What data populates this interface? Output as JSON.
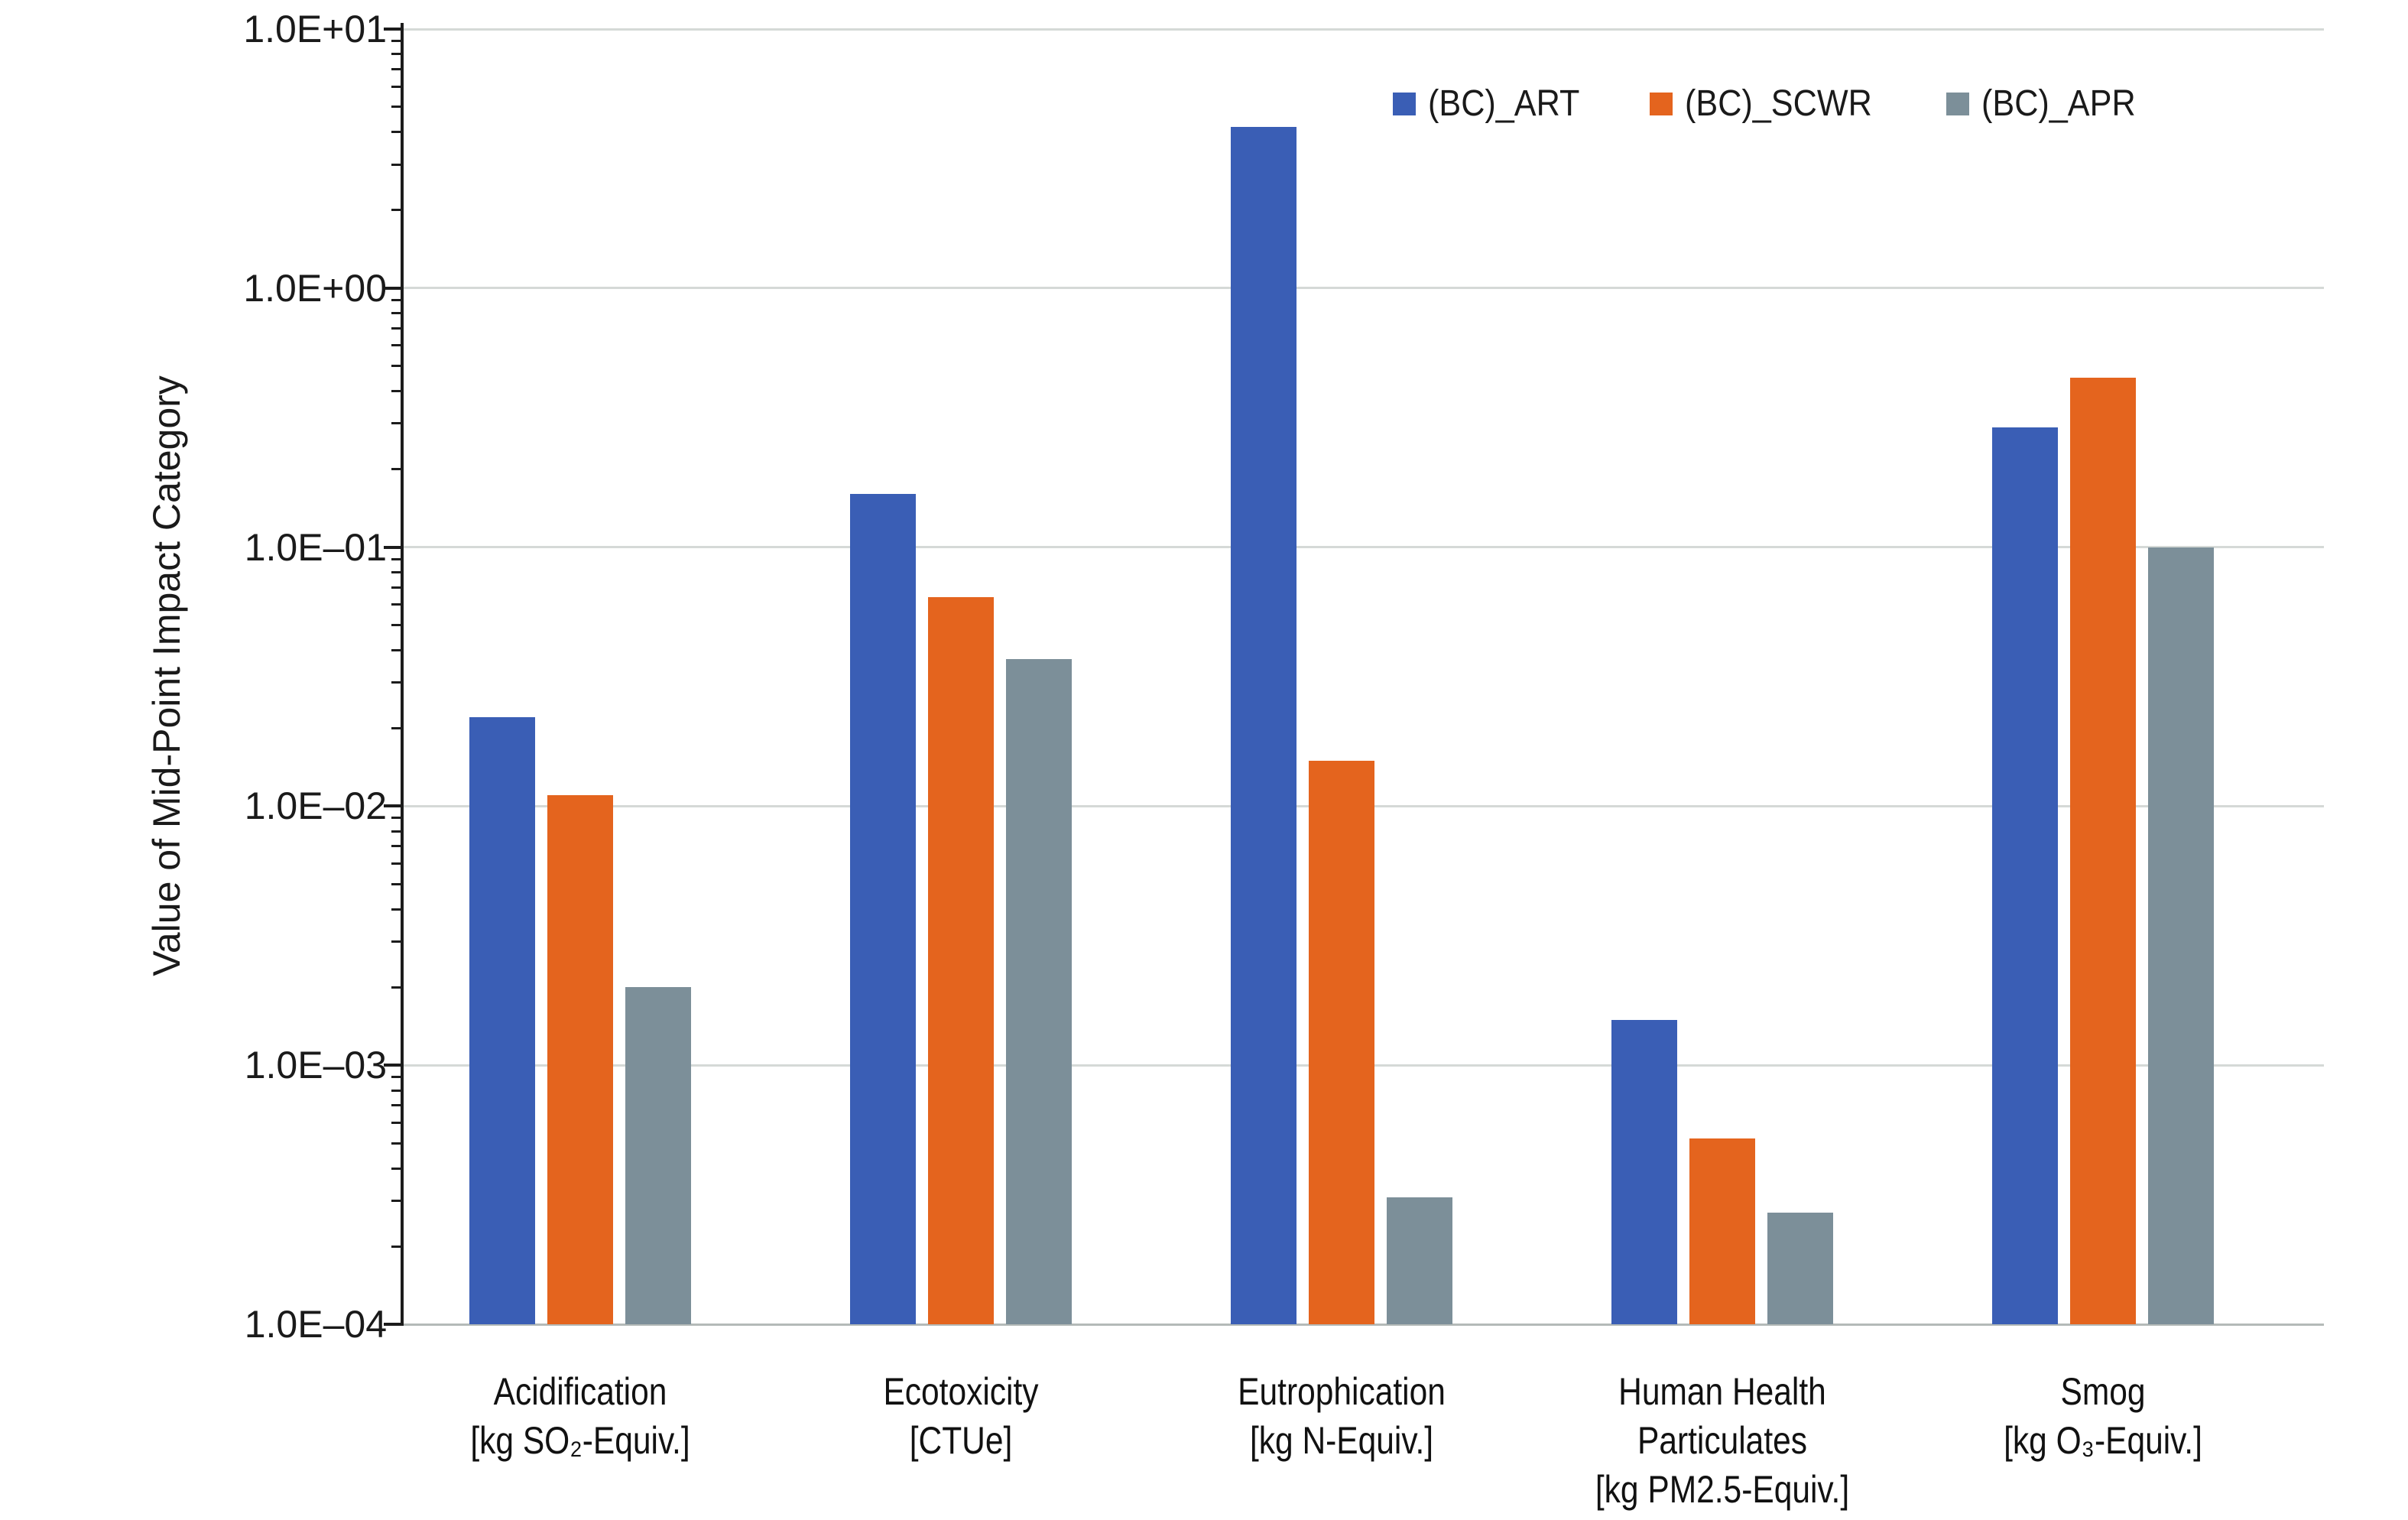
{
  "figure": {
    "background": "#ffffff",
    "axis_color": "#1c1c1c",
    "gridline_color": "#d5d9d7",
    "baseline_color": "#b4bab8"
  },
  "y_axis": {
    "title": "Value of Mid-Point Impact Category",
    "tick_labels": [
      "1.0E+01",
      "1.0E+00",
      "1.0E–01",
      "1.0E–02",
      "1.0E–03",
      "1.0E–04"
    ],
    "max_exponent": 1,
    "min_exponent": -4
  },
  "chart_data": {
    "type": "bar",
    "y_scale": "log10",
    "title": "",
    "xlabel": "",
    "ylabel": "Value of Mid-Point Impact Category",
    "ylim": [
      0.0001,
      10
    ],
    "grid": "horizontal major gridlines at each decade, log minor ticks on y-axis",
    "legend_position": "top-right",
    "categories": [
      [
        "Acidification",
        "[kg SO₂-Equiv.]"
      ],
      [
        "Ecotoxicity",
        "[CTUe]"
      ],
      [
        "Eutrophication",
        "[kg N-Equiv.]"
      ],
      [
        "Human Health",
        "Particulates",
        "[kg PM2.5-Equiv.]"
      ],
      [
        "Smog",
        "[kg O₃-Equiv.]"
      ]
    ],
    "series": [
      {
        "name": "(BC)_ART",
        "color": "#3a5eb5",
        "values": [
          0.022,
          0.16,
          4.2,
          0.0015,
          0.29
        ]
      },
      {
        "name": "(BC)_SCWR",
        "color": "#e4641e",
        "values": [
          0.011,
          0.064,
          0.015,
          0.00052,
          0.45
        ]
      },
      {
        "name": "(BC)_APR",
        "color": "#7c8f99",
        "values": [
          0.002,
          0.037,
          0.00031,
          0.00027,
          0.1
        ]
      }
    ]
  }
}
